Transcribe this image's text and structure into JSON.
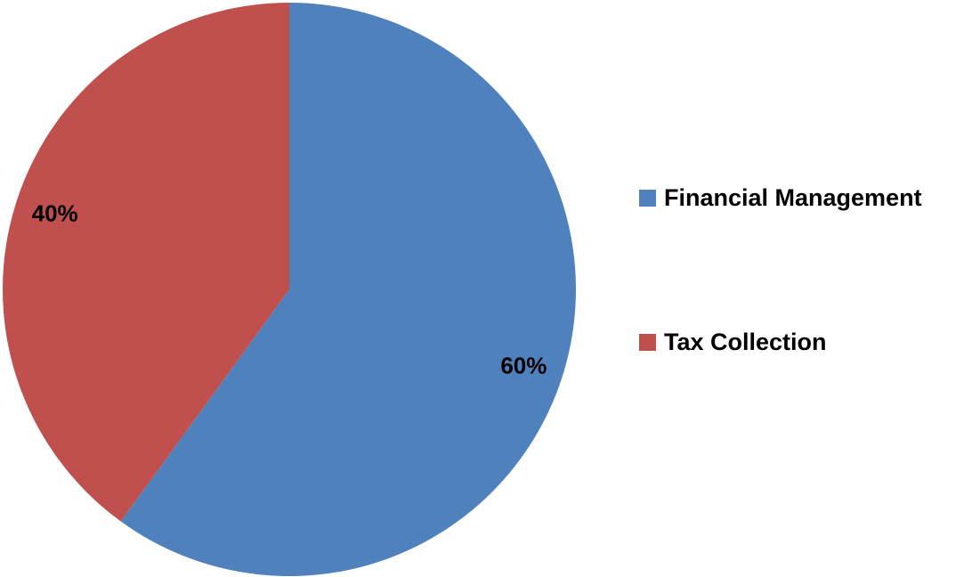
{
  "chart_data": {
    "type": "pie",
    "categories": [
      "Financial Management",
      "Tax Collection"
    ],
    "values": [
      60,
      40
    ],
    "data_labels": [
      "60%",
      "40%"
    ],
    "colors": [
      "#4F81BD",
      "#C0504D"
    ],
    "start_angle_deg": 0,
    "direction": "clockwise",
    "legend_position": "right",
    "title": ""
  }
}
